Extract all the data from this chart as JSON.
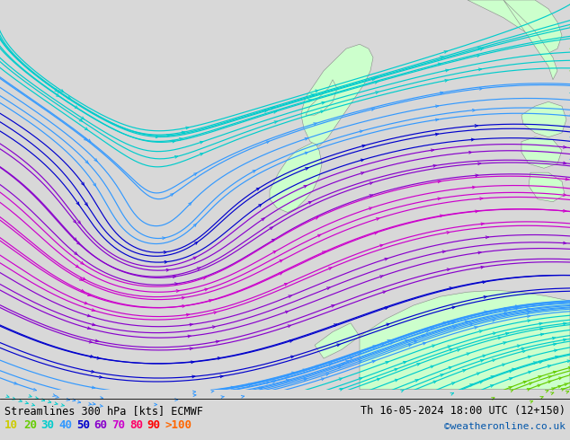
{
  "title_left": "Streamlines 300 hPa [kts] ECMWF",
  "title_right": "Th 16-05-2024 18:00 UTC (12+150)",
  "credit": "©weatheronline.co.uk",
  "legend_values": [
    "10",
    "20",
    "30",
    "40",
    "50",
    "60",
    "70",
    "80",
    "90",
    ">100"
  ],
  "legend_colors": [
    "#cccc00",
    "#66cc00",
    "#00cccc",
    "#3399ff",
    "#0000cc",
    "#8800cc",
    "#cc00cc",
    "#ff0066",
    "#ff0000",
    "#ff6600"
  ],
  "bg_color": "#d8d8d8",
  "land_color": "#ccffcc",
  "coast_color": "#888888",
  "figsize": [
    6.34,
    4.9
  ],
  "dpi": 100
}
